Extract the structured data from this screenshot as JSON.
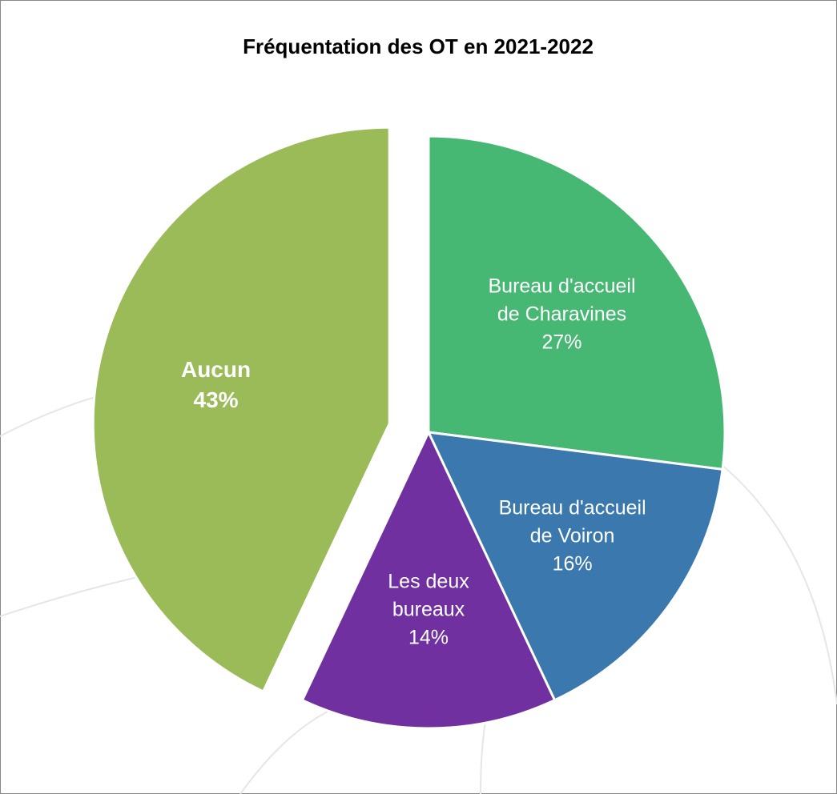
{
  "chart_data": {
    "type": "pie",
    "title": "Fréquentation des OT en 2021-2022",
    "categories": [
      "Bureau d'accueil de Charavines",
      "Bureau d'accueil de Voiron",
      "Les deux bureaux",
      "Aucun"
    ],
    "values": [
      27,
      16,
      14,
      43
    ],
    "value_labels": [
      "27%",
      "16%",
      "14%",
      "43%"
    ],
    "colors": [
      "#47b873",
      "#3a78ad",
      "#7030a0",
      "#9bbb59"
    ],
    "exploded": [
      false,
      false,
      false,
      true
    ]
  }
}
